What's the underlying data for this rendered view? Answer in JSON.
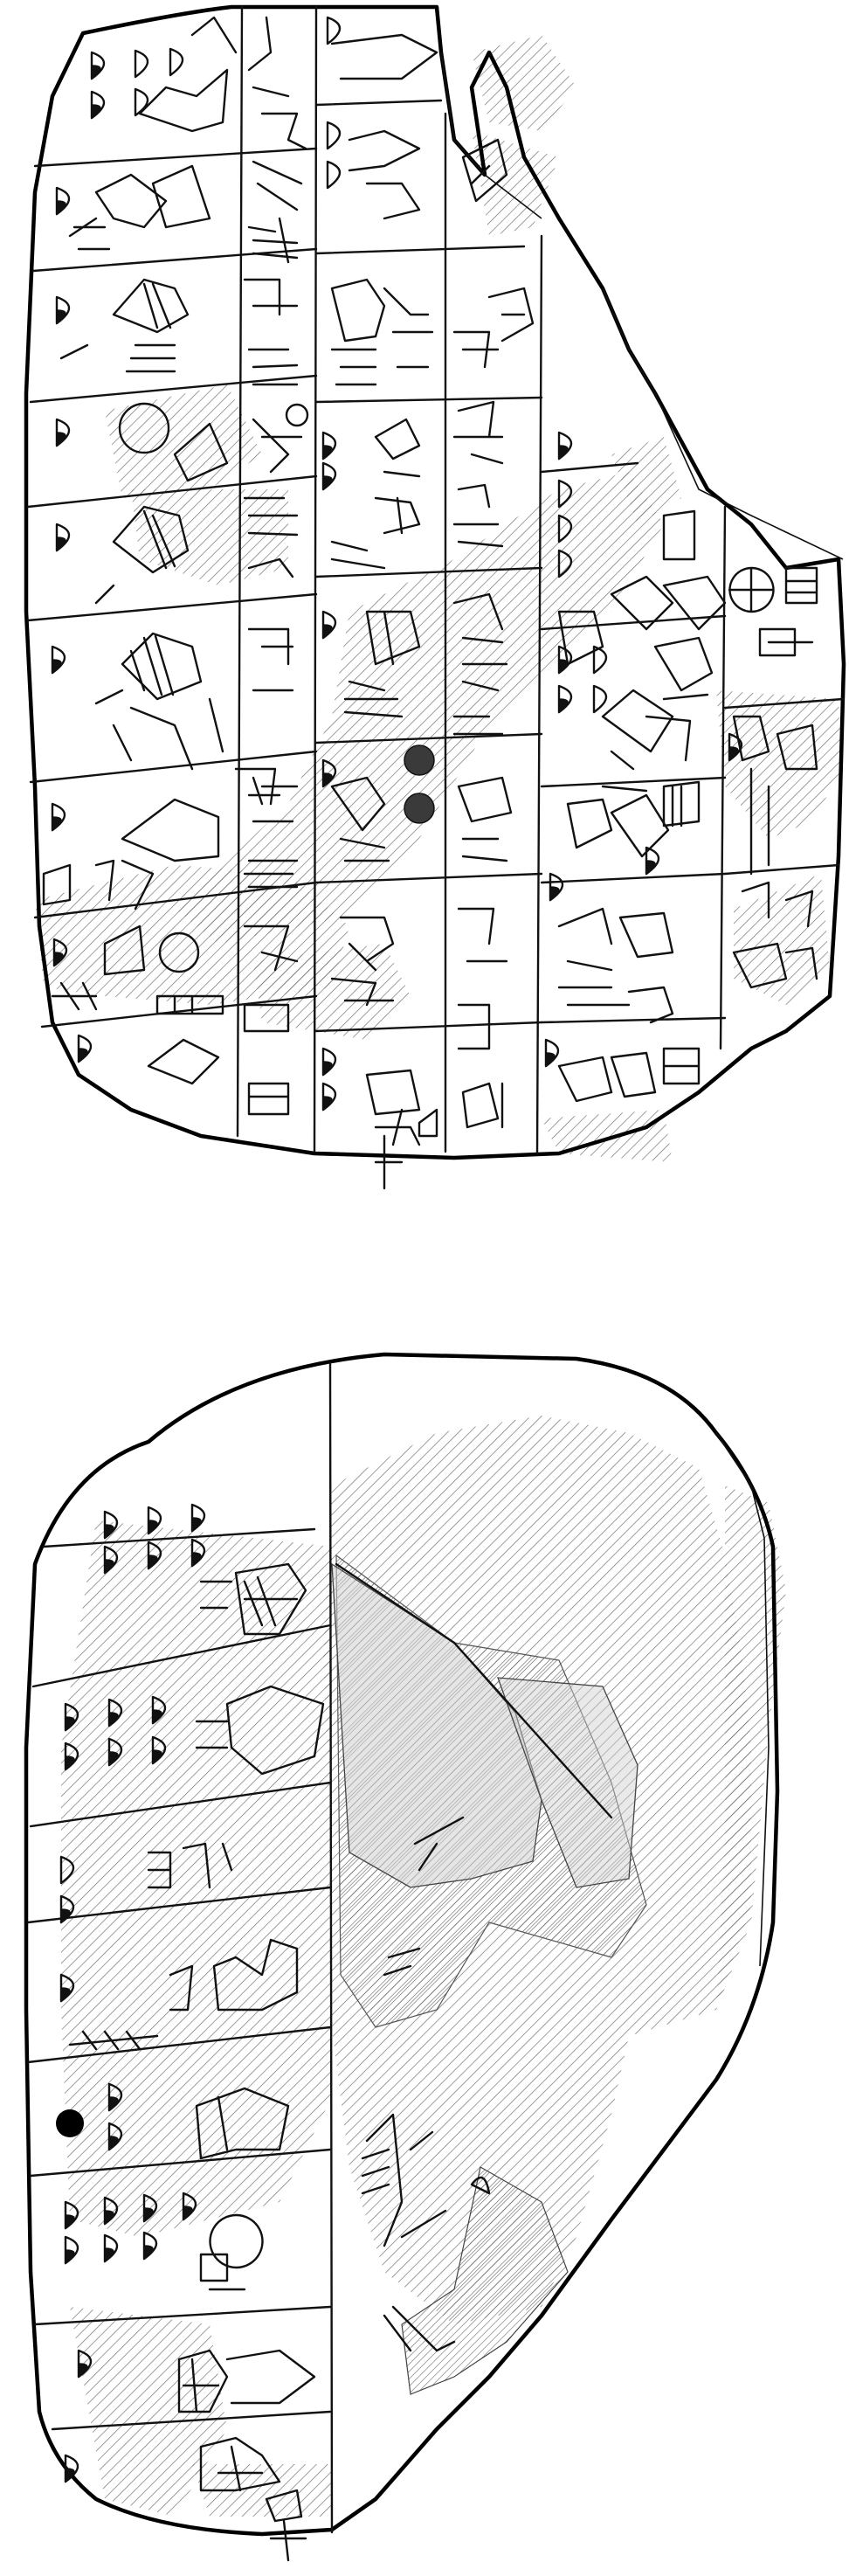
{
  "document": {
    "type": "tablet-drawing",
    "views": [
      "obverse",
      "reverse"
    ]
  },
  "colors": {
    "ink": "#111111",
    "damage_hatch": "#6b6b6b",
    "damage_fill": "#bdbdbd",
    "background": "#ffffff"
  }
}
